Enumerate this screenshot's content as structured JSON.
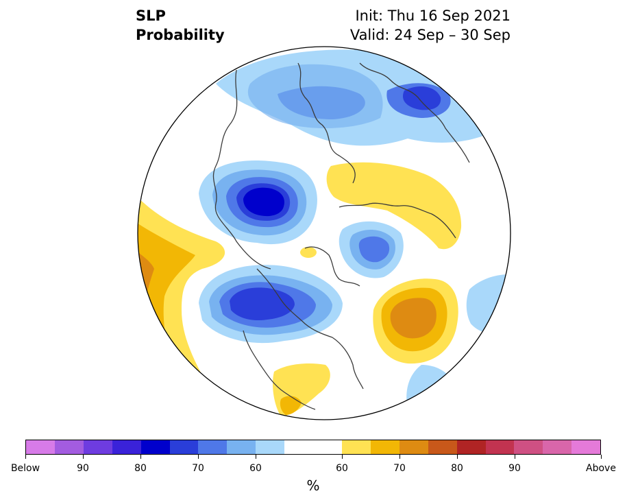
{
  "title": {
    "variable": "SLP",
    "product": "Probability",
    "init": "Init: Thu 16 Sep 2021",
    "valid": "Valid: 24 Sep – 30 Sep"
  },
  "colorbar": {
    "colors": [
      "#d77be8",
      "#a35ce0",
      "#6e3ce0",
      "#3a22d9",
      "#0000cc",
      "#2a3ed9",
      "#4f78e8",
      "#78b2f0",
      "#a9d8fa",
      "#ffffff",
      "#ffffff",
      "#ffe253",
      "#f2b705",
      "#de8b12",
      "#c8581a",
      "#b02424",
      "#c23350",
      "#cf5083",
      "#d966aa",
      "#e57ad9"
    ],
    "tick_labels": [
      "Below",
      "90",
      "80",
      "70",
      "60",
      "60",
      "70",
      "80",
      "90",
      "Above"
    ],
    "unit": "%"
  },
  "map": {
    "type": "polar-stereographic",
    "variable": "sea-level pressure probability",
    "anomalies": [
      {
        "region": "Arctic / north Siberia",
        "category": "below",
        "level": "60-70"
      },
      {
        "region": "Northern Russia",
        "category": "below",
        "level": "70"
      },
      {
        "region": "Central Siberia / Yakutia",
        "category": "below",
        "level": "80+"
      },
      {
        "region": "Greenland Sea / Iceland",
        "category": "below",
        "level": "60-70"
      },
      {
        "region": "Gulf of Alaska / Western Canada",
        "category": "below",
        "level": "70-75"
      },
      {
        "region": "Eastern North Pacific",
        "category": "above",
        "level": "60-70"
      },
      {
        "region": "Western North Atlantic",
        "category": "above",
        "level": "65-70"
      },
      {
        "region": "Eastern Siberia / Mongolia",
        "category": "above",
        "level": "60"
      },
      {
        "region": "Southern United States / Mexico",
        "category": "above",
        "level": "60-65"
      }
    ]
  }
}
